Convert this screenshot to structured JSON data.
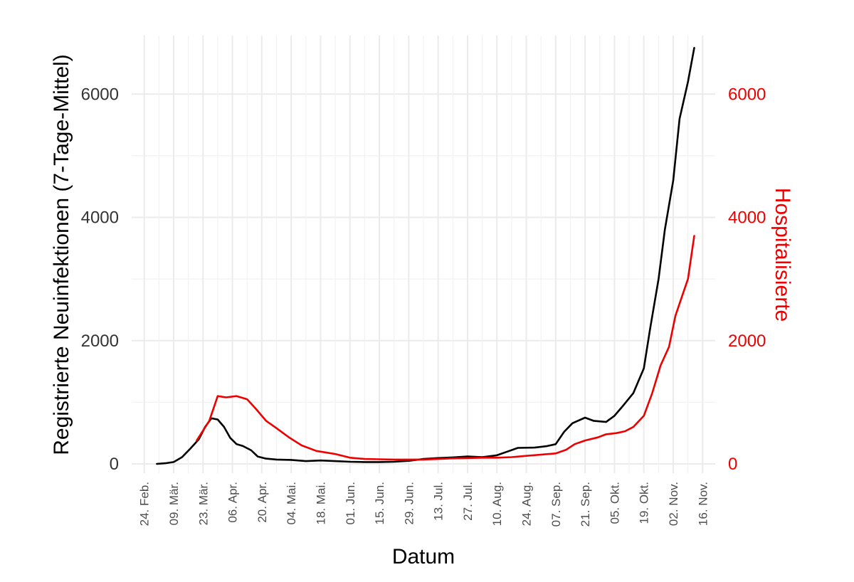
{
  "chart_data": {
    "type": "line",
    "title": "",
    "xlabel": "Datum",
    "ylabel": "Registrierte Neuinfektionen (7-Tage-Mittel)",
    "y2label": "Hospitalisierte",
    "ylim": [
      -150,
      6950
    ],
    "y2lim": [
      -150,
      6950
    ],
    "yticks": [
      0,
      2000,
      4000,
      6000
    ],
    "y2ticks": [
      0,
      2000,
      4000,
      6000
    ],
    "xlim": [
      "2020-02-18",
      "2020-11-22"
    ],
    "xticks": [
      {
        "date": "2020-02-24",
        "label": "24. Feb."
      },
      {
        "date": "2020-03-09",
        "label": "09. Mär."
      },
      {
        "date": "2020-03-23",
        "label": "23. Mär."
      },
      {
        "date": "2020-04-06",
        "label": "06. Apr."
      },
      {
        "date": "2020-04-20",
        "label": "20. Apr."
      },
      {
        "date": "2020-05-04",
        "label": "04. Mai."
      },
      {
        "date": "2020-05-18",
        "label": "18. Mai."
      },
      {
        "date": "2020-06-01",
        "label": "01. Jun."
      },
      {
        "date": "2020-06-15",
        "label": "15. Jun."
      },
      {
        "date": "2020-06-29",
        "label": "29. Jun."
      },
      {
        "date": "2020-07-13",
        "label": "13. Jul."
      },
      {
        "date": "2020-07-27",
        "label": "27. Jul."
      },
      {
        "date": "2020-08-10",
        "label": "10. Aug."
      },
      {
        "date": "2020-08-24",
        "label": "24. Aug."
      },
      {
        "date": "2020-09-07",
        "label": "07. Sep."
      },
      {
        "date": "2020-09-21",
        "label": "21. Sep."
      },
      {
        "date": "2020-10-05",
        "label": "05. Okt."
      },
      {
        "date": "2020-10-19",
        "label": "19. Okt."
      },
      {
        "date": "2020-11-02",
        "label": "02. Nov."
      },
      {
        "date": "2020-11-16",
        "label": "16. Nov."
      }
    ],
    "grid": true,
    "series": [
      {
        "axis": "left",
        "color": "#000000",
        "points": [
          [
            "2020-03-01",
            0
          ],
          [
            "2020-03-05",
            10
          ],
          [
            "2020-03-09",
            30
          ],
          [
            "2020-03-13",
            110
          ],
          [
            "2020-03-17",
            250
          ],
          [
            "2020-03-21",
            400
          ],
          [
            "2020-03-24",
            600
          ],
          [
            "2020-03-27",
            740
          ],
          [
            "2020-03-30",
            720
          ],
          [
            "2020-04-02",
            600
          ],
          [
            "2020-04-05",
            420
          ],
          [
            "2020-04-08",
            320
          ],
          [
            "2020-04-11",
            290
          ],
          [
            "2020-04-15",
            220
          ],
          [
            "2020-04-18",
            120
          ],
          [
            "2020-04-22",
            85
          ],
          [
            "2020-04-27",
            70
          ],
          [
            "2020-05-04",
            65
          ],
          [
            "2020-05-11",
            45
          ],
          [
            "2020-05-18",
            55
          ],
          [
            "2020-05-25",
            45
          ],
          [
            "2020-06-01",
            35
          ],
          [
            "2020-06-08",
            30
          ],
          [
            "2020-06-15",
            30
          ],
          [
            "2020-06-22",
            35
          ],
          [
            "2020-06-29",
            50
          ],
          [
            "2020-07-06",
            80
          ],
          [
            "2020-07-13",
            95
          ],
          [
            "2020-07-20",
            105
          ],
          [
            "2020-07-27",
            120
          ],
          [
            "2020-08-03",
            110
          ],
          [
            "2020-08-10",
            140
          ],
          [
            "2020-08-15",
            200
          ],
          [
            "2020-08-20",
            260
          ],
          [
            "2020-08-28",
            265
          ],
          [
            "2020-09-03",
            290
          ],
          [
            "2020-09-07",
            320
          ],
          [
            "2020-09-11",
            520
          ],
          [
            "2020-09-15",
            660
          ],
          [
            "2020-09-21",
            750
          ],
          [
            "2020-09-25",
            700
          ],
          [
            "2020-10-01",
            680
          ],
          [
            "2020-10-05",
            780
          ],
          [
            "2020-10-09",
            940
          ],
          [
            "2020-10-14",
            1150
          ],
          [
            "2020-10-19",
            1550
          ],
          [
            "2020-10-22",
            2200
          ],
          [
            "2020-10-26",
            3000
          ],
          [
            "2020-10-29",
            3800
          ],
          [
            "2020-11-02",
            4600
          ],
          [
            "2020-11-05",
            5600
          ],
          [
            "2020-11-09",
            6200
          ],
          [
            "2020-11-12",
            6750
          ]
        ]
      },
      {
        "axis": "right",
        "color": "#ee0000",
        "points": [
          [
            "2020-03-20",
            380
          ],
          [
            "2020-03-26",
            700
          ],
          [
            "2020-03-30",
            1100
          ],
          [
            "2020-04-03",
            1080
          ],
          [
            "2020-04-08",
            1100
          ],
          [
            "2020-04-13",
            1050
          ],
          [
            "2020-04-17",
            900
          ],
          [
            "2020-04-22",
            700
          ],
          [
            "2020-04-27",
            580
          ],
          [
            "2020-05-03",
            430
          ],
          [
            "2020-05-09",
            300
          ],
          [
            "2020-05-16",
            210
          ],
          [
            "2020-05-25",
            160
          ],
          [
            "2020-06-01",
            100
          ],
          [
            "2020-06-08",
            80
          ],
          [
            "2020-06-15",
            75
          ],
          [
            "2020-06-22",
            70
          ],
          [
            "2020-06-29",
            70
          ],
          [
            "2020-07-06",
            70
          ],
          [
            "2020-07-13",
            80
          ],
          [
            "2020-07-20",
            90
          ],
          [
            "2020-07-27",
            95
          ],
          [
            "2020-08-03",
            100
          ],
          [
            "2020-08-10",
            100
          ],
          [
            "2020-08-17",
            110
          ],
          [
            "2020-08-24",
            130
          ],
          [
            "2020-08-31",
            150
          ],
          [
            "2020-09-07",
            170
          ],
          [
            "2020-09-12",
            230
          ],
          [
            "2020-09-16",
            320
          ],
          [
            "2020-09-21",
            380
          ],
          [
            "2020-09-27",
            430
          ],
          [
            "2020-10-01",
            480
          ],
          [
            "2020-10-06",
            500
          ],
          [
            "2020-10-10",
            530
          ],
          [
            "2020-10-14",
            600
          ],
          [
            "2020-10-19",
            780
          ],
          [
            "2020-10-23",
            1150
          ],
          [
            "2020-10-27",
            1600
          ],
          [
            "2020-10-31",
            1900
          ],
          [
            "2020-11-03",
            2400
          ],
          [
            "2020-11-06",
            2700
          ],
          [
            "2020-11-09",
            3000
          ],
          [
            "2020-11-12",
            3700
          ]
        ]
      }
    ]
  },
  "colors": {
    "left_axis_text": "#333333",
    "right_axis_text": "#ee0000",
    "grid_major": "#ebebeb",
    "grid_minor": "#f2f2f2"
  }
}
